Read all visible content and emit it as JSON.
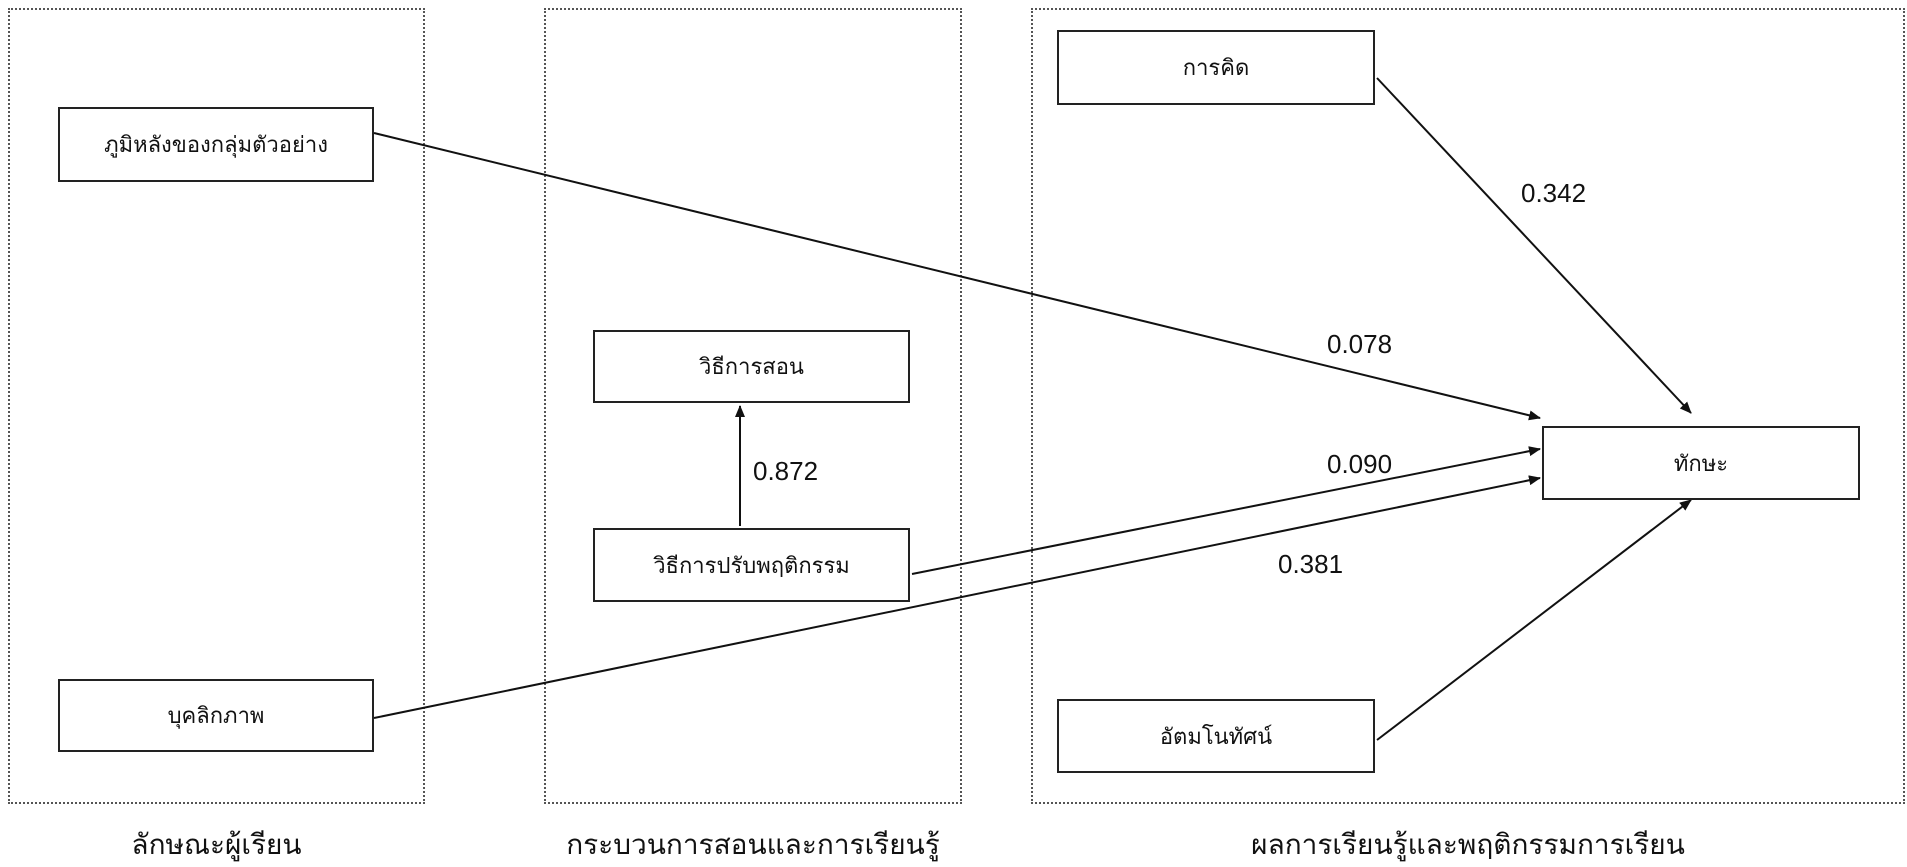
{
  "panels": {
    "learner": {
      "caption": "ลักษณะผู้เรียน"
    },
    "teaching": {
      "caption": "กระบวนการสอนและการเรียนรู้"
    },
    "outcome": {
      "caption": "ผลการเรียนรู้และพฤติกรรมการเรียน"
    }
  },
  "nodes": {
    "background": "ภูมิหลังของกลุ่มตัวอย่าง",
    "personality": "บุคลิกภาพ",
    "teaching_method": "วิธีการสอน",
    "behavior_method": "วิธีการปรับพฤติกรรม",
    "thinking": "การคิด",
    "self_concept": "อัตมโนทัศน์",
    "skill": "ทักษะ"
  },
  "edges": {
    "behavior_to_teaching": "0.872",
    "thinking_to_skill": "0.342",
    "background_to_skill": "0.078",
    "behavior_to_skill": "0.090",
    "personality_to_skill": "0.381"
  },
  "colors": {
    "line": "#111111",
    "panel_border": "#555555"
  }
}
